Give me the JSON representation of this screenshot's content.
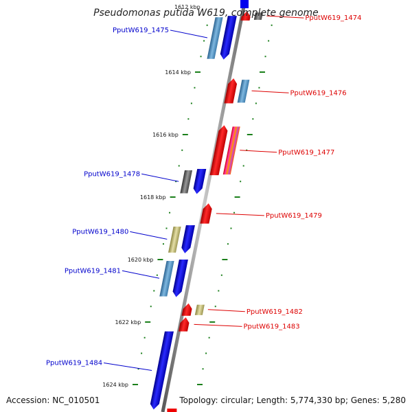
{
  "title": "Pseudomonas putida W619, complete genome",
  "accession": "Accession: NC_010501",
  "topology": "Topology: circular; Length: 5,774,330 bp; Genes: 5,280",
  "top_cut_label": "1612 kbp",
  "colors": {
    "backbone": "#8a8a8a",
    "tick": "#1a7f1a",
    "left_label": "#0000cc",
    "right_label": "#dd0000",
    "blue": "#0000ee",
    "red": "#ee0000",
    "steel": "#4a8fc4",
    "gray": "#555555",
    "khaki": "#b8b26a"
  },
  "scale_labels": [
    "1614 kbp",
    "1616 kbp",
    "1618 kbp",
    "1620 kbp",
    "1622 kbp",
    "1624 kbp"
  ],
  "genes": [
    {
      "label": "PputW619_1475",
      "side": "left",
      "strand": "+",
      "start_kbp": 1612.2,
      "end_kbp": 1613.6,
      "color": "blue",
      "bars": [
        "steel"
      ]
    },
    {
      "label": "PputW619_1474",
      "side": "right",
      "strand": "-",
      "start_kbp": 1612.05,
      "end_kbp": 1612.35,
      "color": "red",
      "bars": [
        "gray"
      ]
    },
    {
      "label": "PputW619_1476",
      "side": "right",
      "strand": "-",
      "start_kbp": 1614.2,
      "end_kbp": 1615.0,
      "color": "red",
      "bars": [
        "steel"
      ]
    },
    {
      "label": "PputW619_1477",
      "side": "right",
      "strand": "-",
      "start_kbp": 1615.7,
      "end_kbp": 1617.3,
      "color": "red",
      "bars": [
        "multi"
      ]
    },
    {
      "label": "PputW619_1478",
      "side": "left",
      "strand": "+",
      "start_kbp": 1617.1,
      "end_kbp": 1617.9,
      "color": "blue",
      "bars": [
        "gray"
      ]
    },
    {
      "label": "PputW619_1479",
      "side": "right",
      "strand": "-",
      "start_kbp": 1618.2,
      "end_kbp": 1618.85,
      "color": "red",
      "bars": []
    },
    {
      "label": "PputW619_1480",
      "side": "left",
      "strand": "+",
      "start_kbp": 1618.9,
      "end_kbp": 1619.8,
      "color": "blue",
      "bars": [
        "khaki"
      ]
    },
    {
      "label": "PputW619_1481",
      "side": "left",
      "strand": "+",
      "start_kbp": 1620.0,
      "end_kbp": 1621.2,
      "color": "blue",
      "bars": [
        "steel"
      ]
    },
    {
      "label": "PputW619_1482",
      "side": "right",
      "strand": "-",
      "start_kbp": 1621.4,
      "end_kbp": 1621.8,
      "color": "red",
      "bars": [
        "khaki"
      ]
    },
    {
      "label": "PputW619_1483",
      "side": "right",
      "strand": "-",
      "start_kbp": 1621.85,
      "end_kbp": 1622.3,
      "color": "red",
      "bars": []
    },
    {
      "label": "PputW619_1484",
      "side": "left",
      "strand": "+",
      "start_kbp": 1622.3,
      "end_kbp": 1624.8,
      "color": "blue",
      "bars": []
    }
  ]
}
